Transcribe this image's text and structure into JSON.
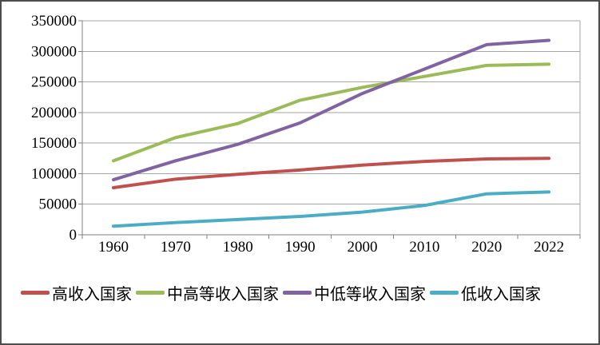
{
  "chart_data": {
    "type": "line",
    "title": "",
    "xlabel": "",
    "ylabel": "",
    "categories": [
      "1960",
      "1970",
      "1980",
      "1990",
      "2000",
      "2010",
      "2020",
      "2022"
    ],
    "y_ticks": [
      0,
      50000,
      100000,
      150000,
      200000,
      250000,
      300000,
      350000
    ],
    "ylim": [
      0,
      350000
    ],
    "grid": true,
    "legend_position": "bottom",
    "series": [
      {
        "name": "高收入国家",
        "color": "#C0504D",
        "values": [
          77000,
          91000,
          99000,
          106000,
          114000,
          120000,
          124000,
          125000
        ]
      },
      {
        "name": "中高等收入国家",
        "color": "#9BBB59",
        "values": [
          121000,
          159000,
          182000,
          220000,
          241000,
          259000,
          277000,
          279000
        ]
      },
      {
        "name": "中低等收入国家",
        "color": "#8064A2",
        "values": [
          90000,
          121000,
          148000,
          183000,
          231000,
          271000,
          311000,
          318000
        ]
      },
      {
        "name": "低收入国家",
        "color": "#4BACC6",
        "values": [
          14000,
          20000,
          25000,
          30000,
          37000,
          48000,
          67000,
          70000
        ]
      }
    ]
  }
}
